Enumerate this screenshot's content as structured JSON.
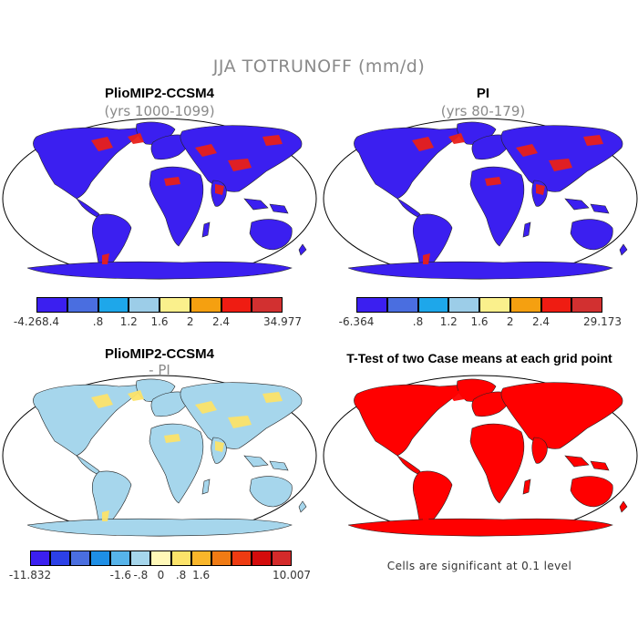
{
  "title": "JJA TOTRUNOFF (mm/d)",
  "panels": [
    {
      "title": "PlioMIP2-CCSM4",
      "subtitle": "(yrs 1000-1099)"
    },
    {
      "title": "PI",
      "subtitle": "(yrs 80-179)"
    },
    {
      "title": "PlioMIP2-CCSM4",
      "subtitle": "- PI"
    },
    {
      "title": "T-Test of two Case means at each grid point",
      "subtitle": ""
    }
  ],
  "colorbars": [
    {
      "colors": [
        "#3b1ff0",
        "#4a6ee0",
        "#1ea7ea",
        "#9ccde8",
        "#faf08c",
        "#f5a010",
        "#ef1c12",
        "#d23030"
      ],
      "ticks": [
        "-4.268.4",
        ".8",
        "1.2",
        "1.6",
        "2",
        "2.4",
        "34.977"
      ]
    },
    {
      "colors": [
        "#3b1ff0",
        "#4a6ee0",
        "#1ea7ea",
        "#9ccde8",
        "#faf08c",
        "#f5a010",
        "#ef1c12",
        "#d23030"
      ],
      "ticks": [
        "-6.364",
        ".8",
        "1.2",
        "1.6",
        "2",
        "2.4",
        "29.173"
      ]
    },
    {
      "colors": [
        "#3b1ff0",
        "#2c40e8",
        "#4a6ee0",
        "#1e8fe6",
        "#57b4ea",
        "#a6d6ec",
        "#fff8b8",
        "#fce36a",
        "#f9b62a",
        "#f07b14",
        "#ee3b12",
        "#d40c0c",
        "#d42a2a"
      ],
      "ticks": [
        "-11.832",
        "-1.6",
        "-.8",
        "0",
        ".8",
        "1.6",
        "10.007"
      ]
    }
  ],
  "note": "Cells are significant at 0.1 level",
  "colors": {
    "land_low": "#3b1ff0",
    "land_diff": "#a6d6ec",
    "signif": "#ff0000",
    "frame": "#000000"
  }
}
